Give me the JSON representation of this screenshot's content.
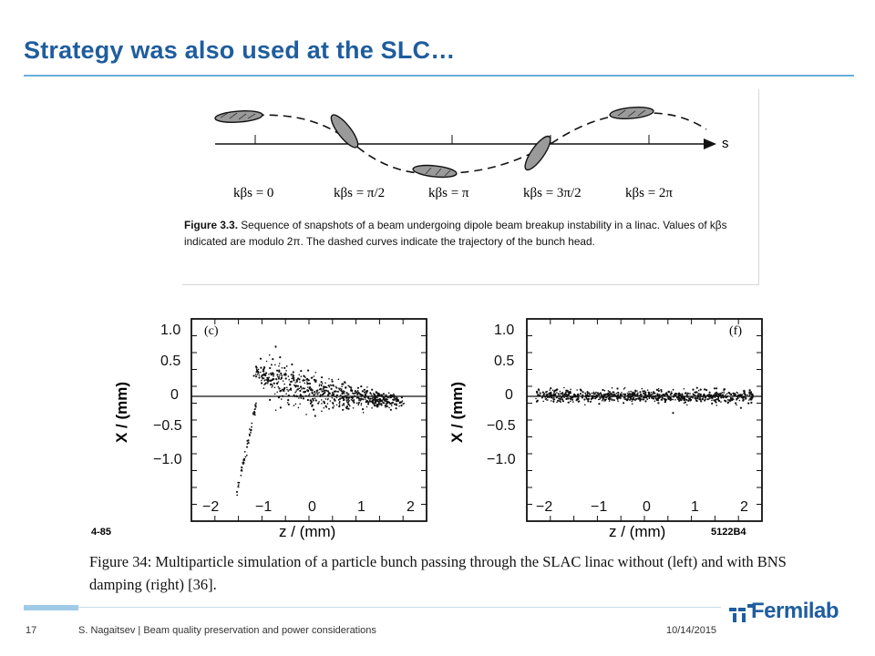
{
  "slide": {
    "title": "Strategy was also used at the SLC…"
  },
  "figure_top": {
    "axis_label": "s",
    "phase_labels": [
      "kβs = 0",
      "kβs = π/2",
      "kβs = π",
      "kβs = 3π/2",
      "kβs = 2π"
    ],
    "caption_label": "Figure 3.3.",
    "caption_text": " Sequence of snapshots of a beam undergoing dipole beam breakup instability in a linac. Values of kβs indicated are modulo 2π. The dashed curves indicate the trajectory of the bunch head."
  },
  "figure_plots": {
    "left": {
      "panel_letter": "(c)",
      "ylabel": "X / (mm)",
      "xlabel": "z / (mm)",
      "yticks": [
        "1.0",
        "0.5",
        "0",
        "−0.5",
        "−1.0"
      ],
      "xticks": [
        "−2",
        "−1",
        "0",
        "1",
        "2"
      ],
      "code": "4-85"
    },
    "right": {
      "panel_letter": "(f)",
      "ylabel": "X / (mm)",
      "xlabel": "z / (mm)",
      "yticks": [
        "1.0",
        "0.5",
        "0",
        "−0.5",
        "−1.0"
      ],
      "xticks": [
        "−2",
        "−1",
        "0",
        "1",
        "2"
      ],
      "code": "5122B4"
    },
    "caption": "Figure 34: Multiparticle simulation of a particle bunch passing through the SLAC linac without (left) and with BNS damping (right) [36]."
  },
  "footer": {
    "page_number": "17",
    "text": "S. Nagaitsev | Beam quality preservation and power considerations",
    "date": "10/14/2015",
    "logo_text": "Fermilab"
  },
  "colors": {
    "title": "#1f5d9e",
    "rule": "#6aaed8"
  }
}
